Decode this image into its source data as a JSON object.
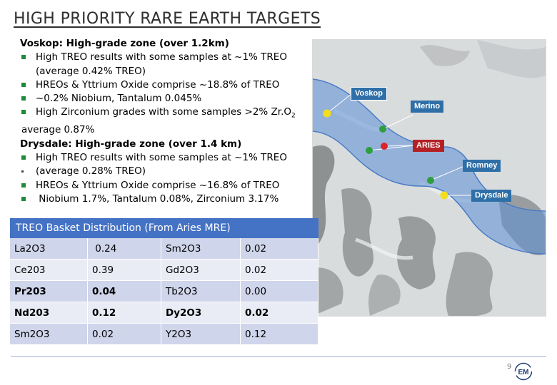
{
  "title": "HIGH PRIORITY RARE EARTH TARGETS",
  "bullets": {
    "voskop_header": "Voskop: High-grade zone (over 1.2km)",
    "voskop_1a": "High TREO results with some samples at ~1% TREO",
    "voskop_1b": "(average 0.42% TREO)",
    "voskop_2": "HREOs & Yttrium Oxide comprise ~18.8% of TREO",
    "voskop_3": "~0.2% Niobium, Tantalum 0.045%",
    "voskop_4a": "High Zirconium grades with some samples >2% Zr.O",
    "voskop_4_sub": "2",
    "voskop_4b": "average 0.87%",
    "drysdale_header": "Drysdale: High-grade zone (over 1.4 km)",
    "drysdale_1a": "High TREO results with some samples at ~1% TREO",
    "drysdale_1b": "(average 0.28% TREO)",
    "drysdale_2": "HREOs & Yttrium Oxide comprise ~16.8% of TREO",
    "drysdale_3": "Niobium 1.7%, Tantalum 0.08%, Zirconium 3.17%"
  },
  "map": {
    "labels": {
      "voskop": "Voskop",
      "merino": "Merino",
      "aries": "ARIES",
      "romney": "Romney",
      "drysdale": "Drysdale"
    },
    "colors": {
      "yellow": "#f2de1b",
      "green": "#2e9e3e",
      "red": "#d9262b",
      "label_bg": "#2f6fa8",
      "aries_bg": "#b52025"
    }
  },
  "table": {
    "caption": "TREO Basket Distribution (From Aries MRE)",
    "rows": [
      {
        "a": "La2O3",
        "b": " 0.24",
        "c": "Sm2O3",
        "d": "0.02"
      },
      {
        "a": "Ce203",
        "b": "0.39",
        "c": "Gd2O3",
        "d": "0.02"
      },
      {
        "a": "Pr203",
        "b": "0.04",
        "c": "Tb2O3",
        "d": "0.00"
      },
      {
        "a": "Nd203",
        "b": "0.12",
        "c": "Dy2O3",
        "d": "0.02"
      },
      {
        "a": "Sm2O3",
        "b": "0.02",
        "c": "Y2O3",
        "d": "0.12"
      }
    ]
  },
  "footer": {
    "page_number": "9",
    "logo_text": "EM"
  }
}
